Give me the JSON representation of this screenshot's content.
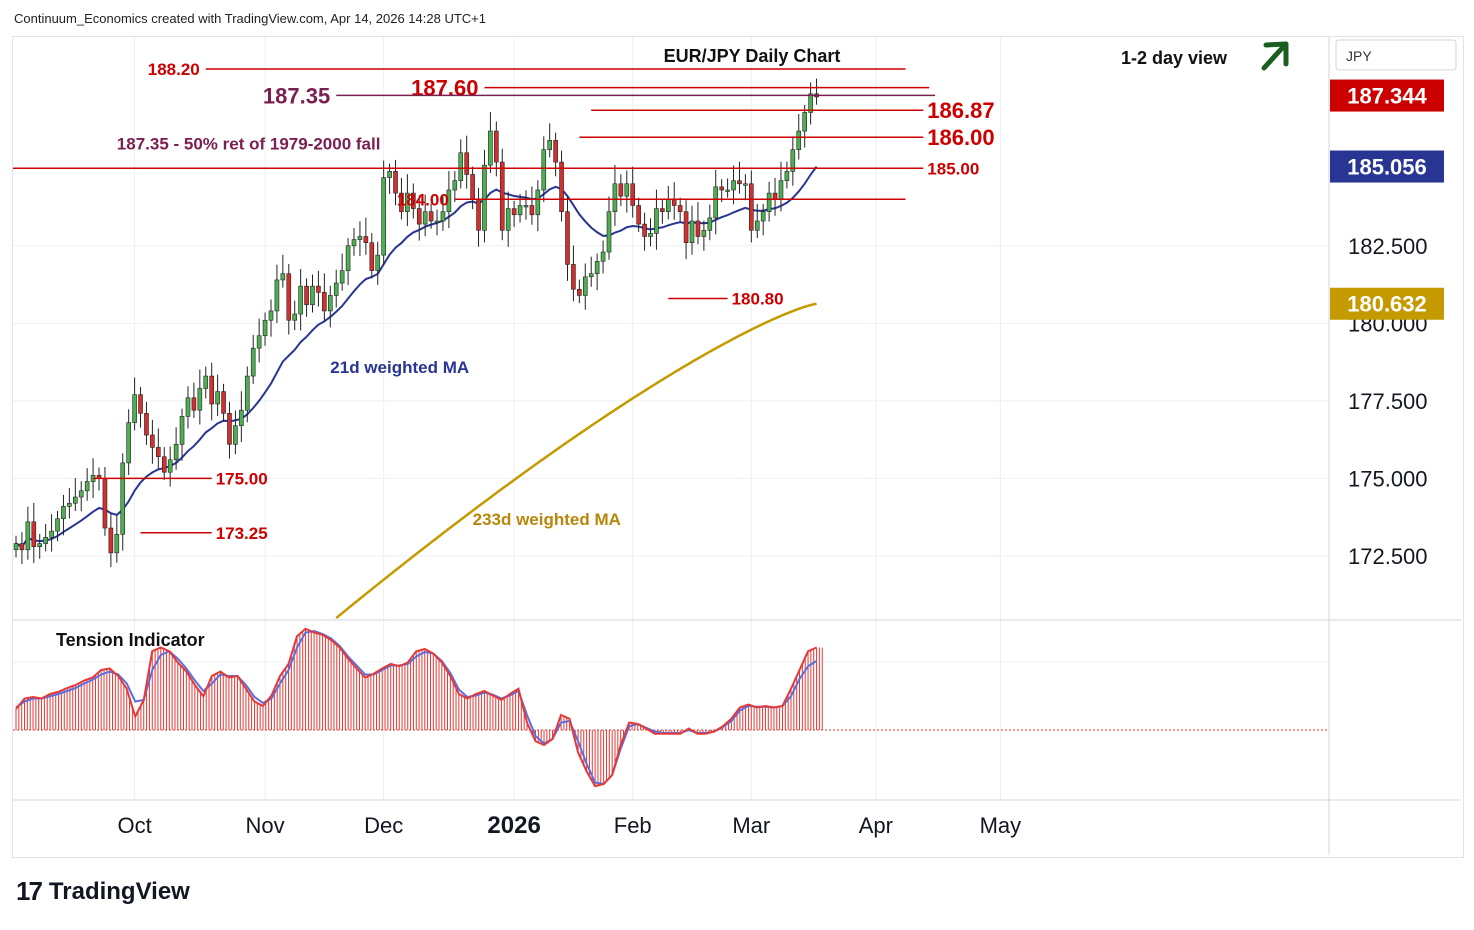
{
  "header": "Continuum_Economics created with TradingView.com, Apr 14, 2026 14:28 UTC+1",
  "brand": {
    "logo_icon": "tradingview-logo-icon",
    "name": "TradingView"
  },
  "colors": {
    "up": "#4caf50",
    "down": "#d32f2f",
    "level": "#cc0000",
    "fib": "#7b1e50",
    "ma21": "#283593",
    "ma233": "#c49a00",
    "tension": "#e53935",
    "tension_signal": "#5b6ee1",
    "arrow": "#1b5e20",
    "grid": "#eceff4"
  },
  "chart_data": {
    "type": "candlestick",
    "title": "EUR/JPY Daily Chart",
    "subtitle": "1-2 day view",
    "currency": "JPY",
    "y_ticks": [
      172.5,
      175.0,
      177.5,
      180.0,
      182.5
    ],
    "y_tick_labels": [
      "172.500",
      "175.000",
      "177.500",
      "180.000",
      "182.500"
    ],
    "ylim": [
      170.5,
      189.2
    ],
    "x_labels": [
      {
        "label": "Oct",
        "bar": 20,
        "bold": false
      },
      {
        "label": "Nov",
        "bar": 42,
        "bold": false
      },
      {
        "label": "Dec",
        "bar": 62,
        "bold": false
      },
      {
        "label": "2026",
        "bar": 84,
        "bold": true
      },
      {
        "label": "Feb",
        "bar": 104,
        "bold": false
      },
      {
        "label": "Mar",
        "bar": 124,
        "bold": false
      },
      {
        "label": "Apr",
        "bar": 145,
        "bold": false
      },
      {
        "label": "May",
        "bar": 166,
        "bold": false
      }
    ],
    "price_badges": [
      {
        "value": "187.344",
        "price": 187.344,
        "color": "#cc0000"
      },
      {
        "value": "185.056",
        "price": 185.056,
        "color": "#283593"
      },
      {
        "value": "180.632",
        "price": 180.632,
        "color": "#c49a00"
      }
    ],
    "levels": [
      {
        "label": "188.20",
        "price": 188.2,
        "from_bar": 32,
        "to_bar": 150,
        "label_side": "left",
        "size": 17,
        "color": "#cc0000"
      },
      {
        "label": "187.60",
        "price": 187.6,
        "from_bar": 79,
        "to_bar": 154,
        "label_side": "left",
        "size": 22,
        "color": "#cc0000"
      },
      {
        "label": "187.35",
        "price": 187.35,
        "from_bar": 54,
        "to_bar": 155,
        "label_side": "left",
        "size": 22,
        "color": "#7b1e50"
      },
      {
        "label": "186.87",
        "price": 186.87,
        "from_bar": 97,
        "to_bar": 153,
        "label_side": "right",
        "size": 22,
        "color": "#cc0000"
      },
      {
        "label": "186.00",
        "price": 186.0,
        "from_bar": 95,
        "to_bar": 153,
        "label_side": "right",
        "size": 22,
        "color": "#cc0000"
      },
      {
        "label": "185.00",
        "price": 185.0,
        "from_bar": -0.5,
        "to_bar": 153,
        "label_side": "right",
        "size": 17,
        "color": "#cc0000"
      },
      {
        "label": "184.00",
        "price": 184.0,
        "from_bar": 74,
        "to_bar": 150,
        "label_side": "left",
        "size": 17,
        "color": "#cc0000"
      },
      {
        "label": "180.80",
        "price": 180.8,
        "from_bar": 110,
        "to_bar": 120,
        "label_side": "right",
        "size": 17,
        "color": "#cc0000"
      },
      {
        "label": "175.00",
        "price": 175.0,
        "from_bar": 13,
        "to_bar": 33,
        "label_side": "right",
        "size": 17,
        "color": "#cc0000"
      },
      {
        "label": "173.25",
        "price": 173.25,
        "from_bar": 21,
        "to_bar": 33,
        "label_side": "right",
        "size": 17,
        "color": "#cc0000"
      }
    ],
    "annotations": [
      {
        "text": "187.35 - 50% ret of 1979-2000 fall",
        "bar": 17,
        "price": 185.6,
        "color": "#7b1e50",
        "size": 17
      },
      {
        "text": "21d weighted MA",
        "bar": 53,
        "price": 178.4,
        "color": "#283593",
        "size": 17
      },
      {
        "text": "233d weighted MA",
        "bar": 77,
        "price": 173.5,
        "color": "#b8860b",
        "size": 17
      }
    ],
    "closes": [
      172.9,
      172.7,
      173.6,
      172.8,
      172.9,
      173.1,
      173.3,
      173.7,
      174.1,
      174.2,
      174.4,
      174.6,
      174.9,
      175.1,
      175.0,
      173.4,
      172.6,
      173.2,
      175.5,
      176.8,
      177.7,
      177.1,
      176.4,
      176.0,
      175.7,
      175.2,
      175.6,
      176.1,
      177.0,
      177.6,
      177.2,
      177.9,
      178.3,
      177.4,
      177.8,
      177.1,
      176.1,
      176.7,
      177.2,
      178.3,
      179.2,
      179.6,
      180.1,
      180.4,
      181.4,
      181.6,
      180.1,
      180.3,
      181.2,
      180.6,
      181.2,
      181.0,
      180.4,
      180.9,
      181.3,
      181.7,
      182.5,
      182.7,
      182.8,
      182.6,
      181.7,
      182.2,
      184.7,
      184.9,
      184.2,
      183.6,
      184.2,
      183.7,
      183.2,
      183.6,
      183.3,
      183.3,
      183.6,
      184.3,
      184.6,
      185.5,
      184.8,
      184.0,
      183.0,
      185.1,
      186.2,
      185.2,
      183.0,
      183.7,
      183.5,
      183.8,
      183.8,
      183.5,
      184.3,
      185.6,
      185.9,
      185.2,
      183.6,
      181.9,
      181.1,
      180.9,
      181.5,
      181.6,
      182.0,
      182.3,
      183.6,
      184.5,
      184.1,
      184.5,
      183.8,
      183.2,
      182.8,
      182.9,
      183.7,
      183.6,
      184.0,
      183.8,
      183.6,
      182.6,
      183.3,
      182.8,
      183.0,
      183.4,
      184.4,
      184.3,
      184.3,
      184.6,
      184.5,
      184.5,
      183.0,
      183.3,
      183.6,
      184.2,
      184.0,
      184.6,
      184.9,
      185.6,
      186.2,
      186.8,
      187.4,
      187.3
    ],
    "ma21_end": 185.056,
    "ma233": {
      "start_bar": 54,
      "start": 170.5,
      "end": 180.632
    },
    "tension": {
      "title": "Tension Indicator",
      "main": [
        0.28,
        0.42,
        0.44,
        0.42,
        0.48,
        0.51,
        0.56,
        0.6,
        0.66,
        0.7,
        0.8,
        0.82,
        0.72,
        0.55,
        0.18,
        0.4,
        1.05,
        1.1,
        1.05,
        0.9,
        0.78,
        0.6,
        0.45,
        0.72,
        0.78,
        0.7,
        0.72,
        0.55,
        0.38,
        0.32,
        0.46,
        0.72,
        0.88,
        1.25,
        1.35,
        1.3,
        1.27,
        1.2,
        1.1,
        0.95,
        0.82,
        0.7,
        0.75,
        0.82,
        0.88,
        0.85,
        0.9,
        1.05,
        1.08,
        1.02,
        0.9,
        0.72,
        0.48,
        0.42,
        0.48,
        0.52,
        0.46,
        0.4,
        0.48,
        0.55,
        0.1,
        -0.15,
        -0.2,
        -0.12,
        0.2,
        0.15,
        -0.3,
        -0.55,
        -0.75,
        -0.72,
        -0.6,
        -0.2,
        0.1,
        0.08,
        0.02,
        -0.05,
        -0.05,
        -0.05,
        -0.05,
        0.02,
        -0.05,
        -0.05,
        -0.02,
        0.05,
        0.15,
        0.3,
        0.34,
        0.3,
        0.32,
        0.3,
        0.32,
        0.55,
        0.8,
        1.05,
        1.1
      ],
      "signal": [
        0.3,
        0.38,
        0.42,
        0.42,
        0.45,
        0.48,
        0.52,
        0.56,
        0.62,
        0.67,
        0.74,
        0.78,
        0.74,
        0.62,
        0.38,
        0.4,
        0.8,
        1.0,
        1.05,
        0.95,
        0.82,
        0.66,
        0.52,
        0.62,
        0.74,
        0.72,
        0.72,
        0.6,
        0.44,
        0.36,
        0.42,
        0.62,
        0.8,
        1.1,
        1.3,
        1.32,
        1.28,
        1.22,
        1.12,
        0.98,
        0.86,
        0.74,
        0.74,
        0.8,
        0.86,
        0.86,
        0.88,
        0.98,
        1.04,
        1.02,
        0.92,
        0.76,
        0.54,
        0.44,
        0.46,
        0.5,
        0.47,
        0.42,
        0.46,
        0.52,
        0.2,
        -0.08,
        -0.18,
        -0.12,
        0.1,
        0.12,
        -0.15,
        -0.45,
        -0.7,
        -0.72,
        -0.6,
        -0.25,
        0.05,
        0.08,
        0.03,
        -0.02,
        -0.04,
        -0.04,
        -0.04,
        0.0,
        -0.04,
        -0.04,
        -0.02,
        0.04,
        0.12,
        0.26,
        0.32,
        0.31,
        0.31,
        0.3,
        0.32,
        0.45,
        0.68,
        0.85,
        0.92
      ]
    }
  }
}
